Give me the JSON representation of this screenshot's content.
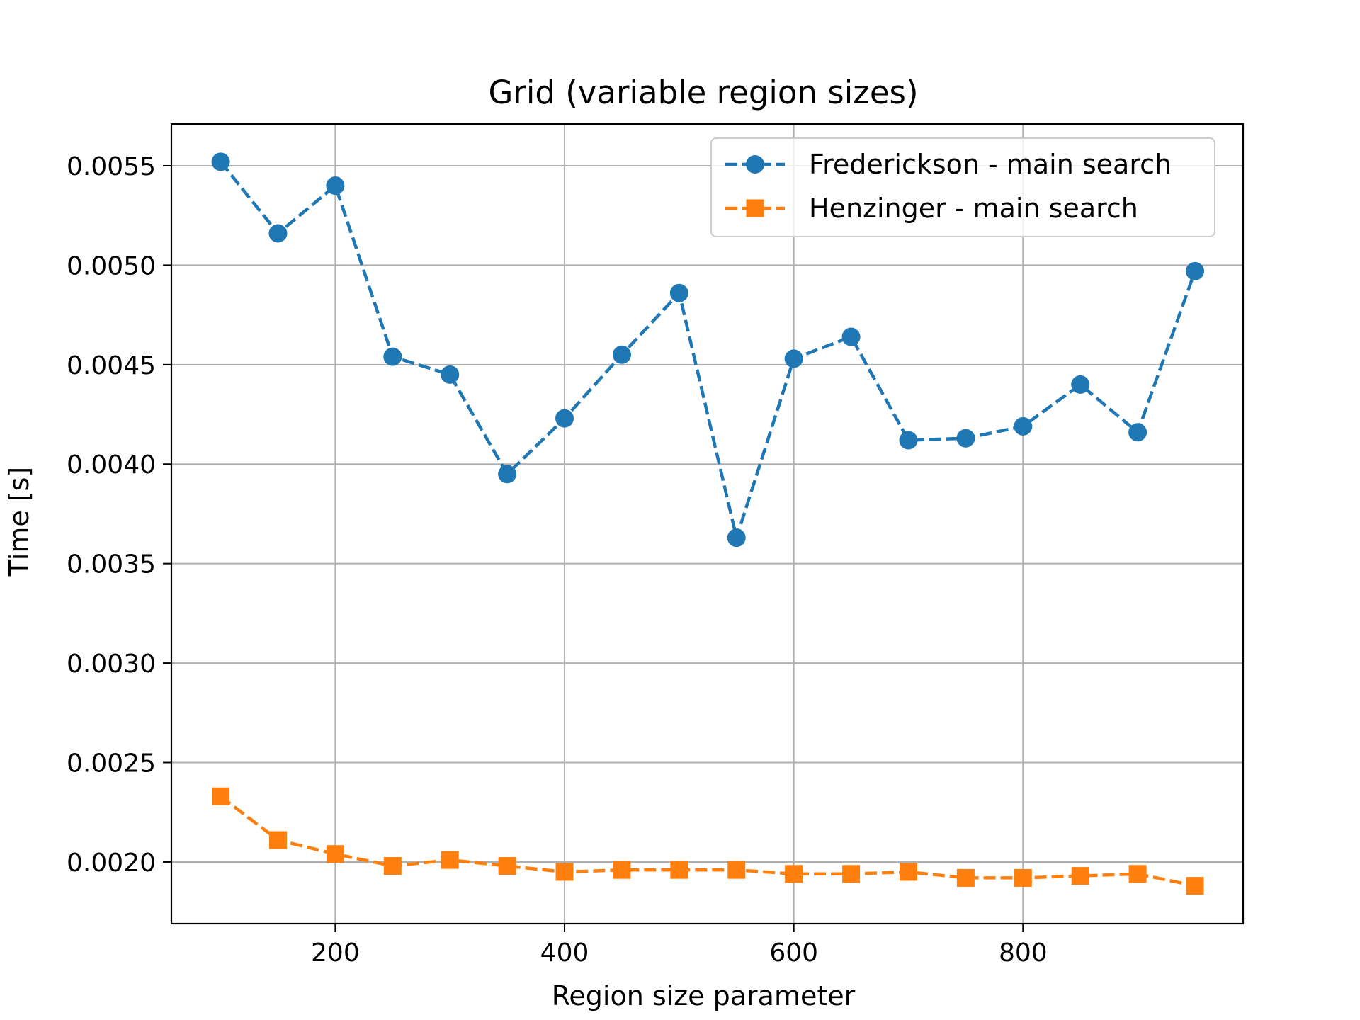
{
  "chart_data": {
    "type": "line",
    "title": "Grid (variable region sizes)",
    "xlabel": "Region size parameter",
    "ylabel": "Time [s]",
    "xlim": [
      57,
      992
    ],
    "ylim": [
      0.00169,
      0.00571
    ],
    "xticks": [
      200,
      400,
      600,
      800
    ],
    "xtick_labels": [
      "200",
      "400",
      "600",
      "800"
    ],
    "yticks": [
      0.002,
      0.0025,
      0.003,
      0.0035,
      0.004,
      0.0045,
      0.005,
      0.0055
    ],
    "ytick_labels": [
      "0.0020",
      "0.0025",
      "0.0030",
      "0.0035",
      "0.0040",
      "0.0045",
      "0.0050",
      "0.0055"
    ],
    "grid": true,
    "legend_position": "top-right",
    "x": [
      100,
      150,
      200,
      250,
      300,
      350,
      400,
      450,
      500,
      550,
      600,
      650,
      700,
      750,
      800,
      850,
      900,
      950
    ],
    "series": [
      {
        "name": "Frederickson - main search",
        "color": "#1f77b4",
        "marker": "circle",
        "linestyle": "dashed",
        "values": [
          0.00552,
          0.00516,
          0.0054,
          0.00454,
          0.00445,
          0.00395,
          0.00423,
          0.00455,
          0.00486,
          0.00363,
          0.00453,
          0.00464,
          0.00412,
          0.00413,
          0.00419,
          0.0044,
          0.00416,
          0.00497
        ]
      },
      {
        "name": "Henzinger - main search",
        "color": "#ff7f0e",
        "marker": "square",
        "linestyle": "dashed",
        "values": [
          0.00233,
          0.00211,
          0.00204,
          0.00198,
          0.00201,
          0.00198,
          0.00195,
          0.00196,
          0.00196,
          0.00196,
          0.00194,
          0.00194,
          0.00195,
          0.00192,
          0.00192,
          0.00193,
          0.00194,
          0.00188
        ]
      }
    ]
  }
}
